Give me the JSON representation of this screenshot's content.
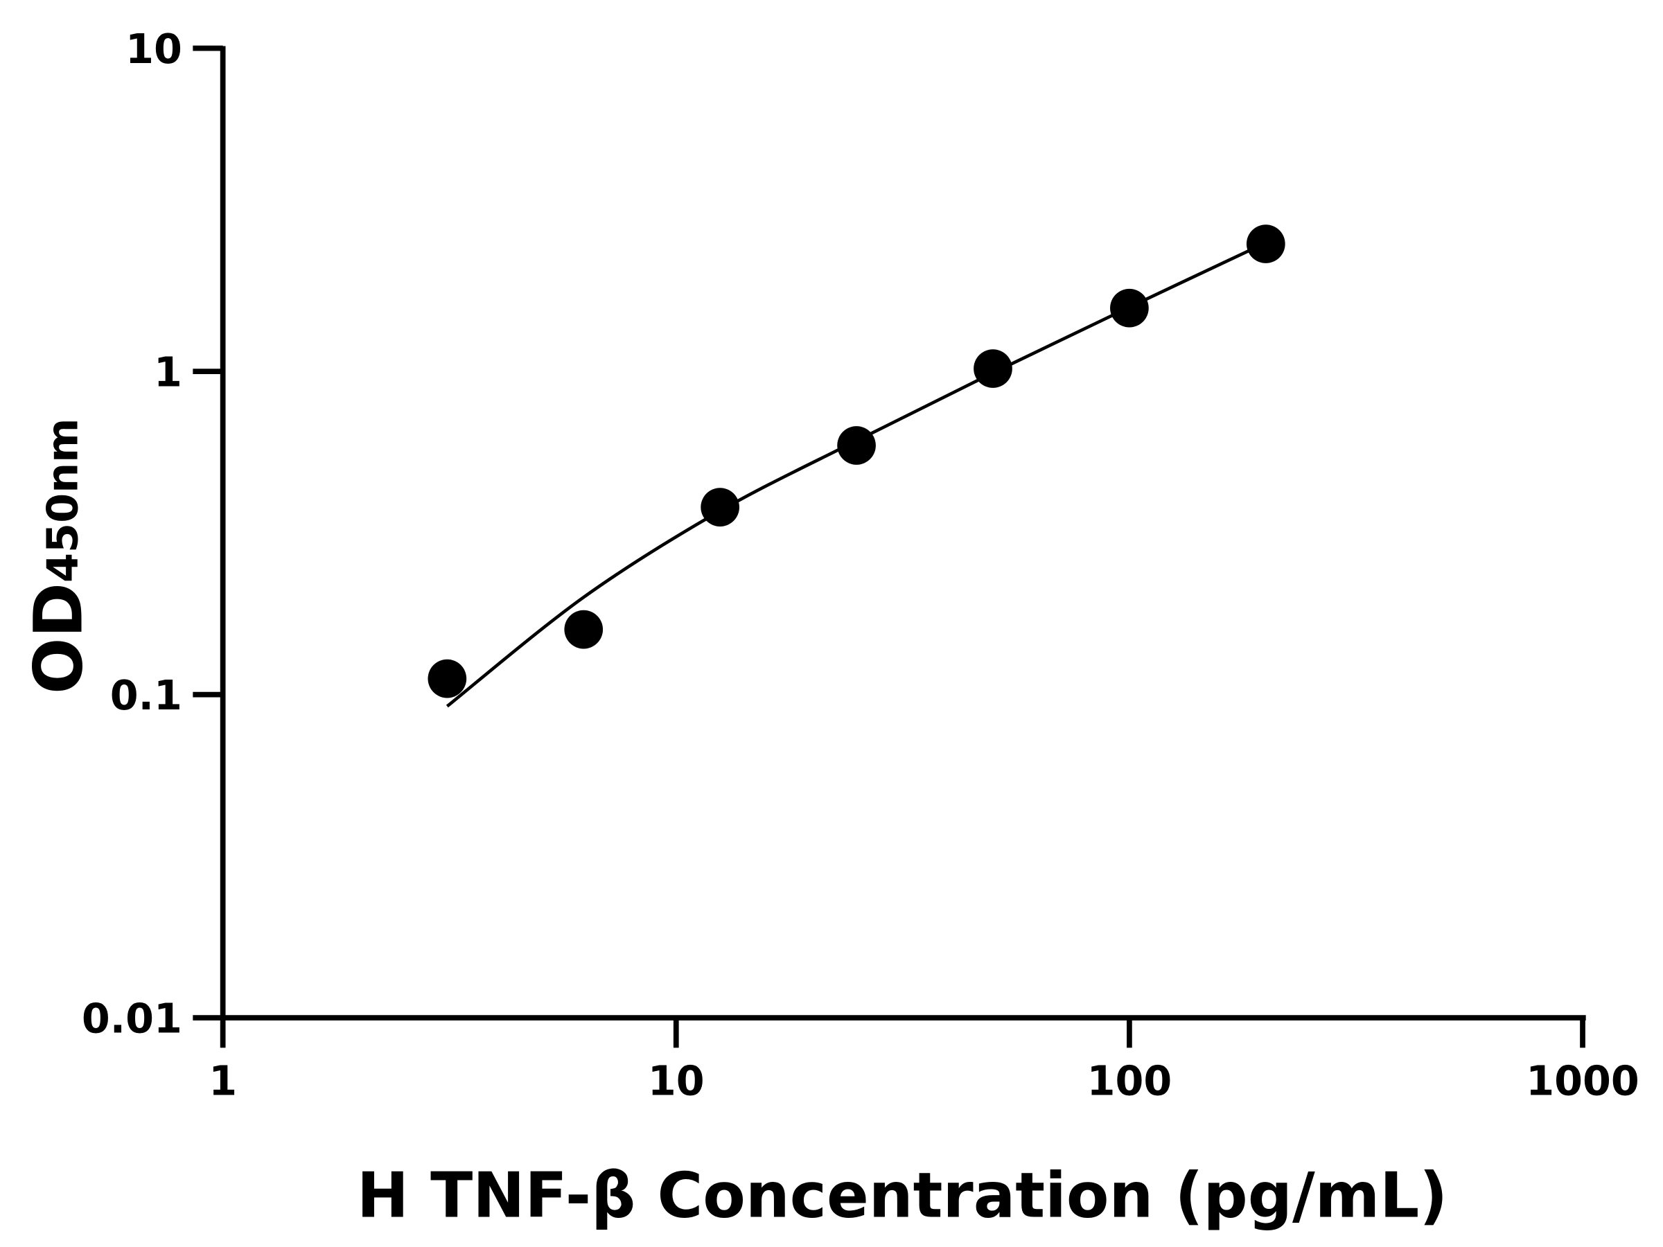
{
  "chart_data": {
    "type": "scatter",
    "title": "",
    "xlabel": "H TNF-β Concentration (pg/mL)",
    "ylabel": "OD",
    "ylabel_subscript": "450nm",
    "x_scale": "log",
    "y_scale": "log",
    "xlim": [
      1,
      1000
    ],
    "ylim": [
      0.01,
      10
    ],
    "x_ticks": [
      "1",
      "10",
      "100",
      "1000"
    ],
    "y_ticks": [
      "0.01",
      "0.1",
      "1",
      "10"
    ],
    "grid": false,
    "legend": "none",
    "colors": {
      "points": "#000000",
      "fit": "#000000",
      "axes": "#000000"
    },
    "points": {
      "x": [
        3.125,
        6.25,
        12.5,
        25,
        50,
        100,
        200
      ],
      "y": [
        0.112,
        0.159,
        0.38,
        0.59,
        1.02,
        1.57,
        2.48
      ]
    },
    "fit_curve": {
      "x": [
        3.125,
        6.25,
        12.5,
        25,
        50,
        100,
        200
      ],
      "y": [
        0.092,
        0.2,
        0.37,
        0.61,
        0.99,
        1.58,
        2.5
      ]
    }
  }
}
